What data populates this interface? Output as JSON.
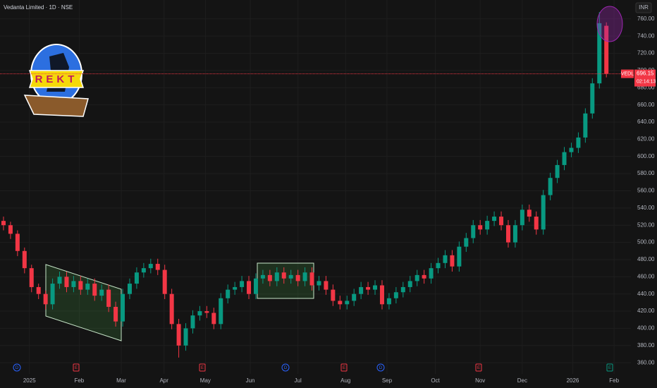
{
  "chart_data": {
    "type": "candlestick",
    "title": "Vedanta Limited · 1D · NSE",
    "currency": "INR",
    "up_color": "#089981",
    "down_color": "#f23645",
    "grid": true,
    "ylim": [
      347,
      782
    ],
    "yticks": [
      360,
      380,
      400,
      420,
      440,
      460,
      480,
      500,
      520,
      540,
      560,
      580,
      600,
      620,
      640,
      660,
      680,
      700,
      720,
      740,
      760
    ],
    "ytick_labels": [
      "360.00",
      "380.00",
      "400.00",
      "420.00",
      "440.00",
      "460.00",
      "480.00",
      "500.00",
      "520.00",
      "540.00",
      "560.00",
      "580.00",
      "600.00",
      "620.00",
      "640.00",
      "660.00",
      "680.00",
      "700.00",
      "720.00",
      "740.00",
      "760.00"
    ],
    "xlim": [
      -0.5,
      89.5
    ],
    "xticks": [
      {
        "value": 3.7,
        "label": "2025"
      },
      {
        "value": 10.8,
        "label": "Feb"
      },
      {
        "value": 16.8,
        "label": "Mar"
      },
      {
        "value": 22.9,
        "label": "Apr"
      },
      {
        "value": 28.8,
        "label": "May"
      },
      {
        "value": 35.2,
        "label": "Jun"
      },
      {
        "value": 42,
        "label": "Jul"
      },
      {
        "value": 48.8,
        "label": "Aug"
      },
      {
        "value": 54.7,
        "label": "Sep"
      },
      {
        "value": 61.6,
        "label": "Oct"
      },
      {
        "value": 68,
        "label": "Nov"
      },
      {
        "value": 74,
        "label": "Dec"
      },
      {
        "value": 81.2,
        "label": "2026"
      },
      {
        "value": 87.1,
        "label": "Feb"
      }
    ],
    "candles": [
      [
        525,
        530,
        514,
        520
      ],
      [
        520,
        524,
        504,
        510
      ],
      [
        510,
        514,
        484,
        490
      ],
      [
        490,
        494,
        464,
        470
      ],
      [
        470,
        474,
        442,
        448
      ],
      [
        448,
        452,
        434,
        440
      ],
      [
        440,
        444,
        422,
        428
      ],
      [
        428,
        458,
        422,
        452
      ],
      [
        452,
        466,
        446,
        460
      ],
      [
        460,
        466,
        442,
        448
      ],
      [
        448,
        461,
        442,
        455
      ],
      [
        455,
        461,
        439,
        445
      ],
      [
        445,
        458,
        439,
        452
      ],
      [
        452,
        458,
        432,
        438
      ],
      [
        438,
        451,
        432,
        445
      ],
      [
        445,
        451,
        419,
        425
      ],
      [
        425,
        431,
        402,
        408
      ],
      [
        408,
        446,
        402,
        440
      ],
      [
        440,
        458,
        434,
        452
      ],
      [
        452,
        471,
        446,
        465
      ],
      [
        465,
        476,
        459,
        470
      ],
      [
        470,
        481,
        464,
        475
      ],
      [
        475,
        481,
        462,
        468
      ],
      [
        468,
        474,
        434,
        440
      ],
      [
        440,
        446,
        399,
        405
      ],
      [
        405,
        411,
        366,
        380
      ],
      [
        380,
        406,
        374,
        400
      ],
      [
        400,
        421,
        394,
        415
      ],
      [
        415,
        426,
        409,
        420
      ],
      [
        420,
        426,
        412,
        418
      ],
      [
        418,
        424,
        399,
        405
      ],
      [
        405,
        441,
        399,
        435
      ],
      [
        435,
        451,
        429,
        445
      ],
      [
        445,
        454,
        439,
        448
      ],
      [
        448,
        461,
        442,
        455
      ],
      [
        455,
        461,
        434,
        440
      ],
      [
        440,
        464,
        434,
        458
      ],
      [
        458,
        468,
        452,
        462
      ],
      [
        462,
        468,
        449,
        455
      ],
      [
        455,
        471,
        449,
        465
      ],
      [
        465,
        471,
        452,
        458
      ],
      [
        458,
        468,
        452,
        462
      ],
      [
        462,
        468,
        449,
        455
      ],
      [
        455,
        471,
        449,
        465
      ],
      [
        465,
        471,
        444,
        450
      ],
      [
        450,
        461,
        444,
        455
      ],
      [
        455,
        461,
        439,
        445
      ],
      [
        445,
        451,
        426,
        432
      ],
      [
        432,
        438,
        422,
        428
      ],
      [
        428,
        438,
        422,
        432
      ],
      [
        432,
        446,
        426,
        440
      ],
      [
        440,
        454,
        434,
        448
      ],
      [
        448,
        454,
        439,
        445
      ],
      [
        445,
        456,
        439,
        450
      ],
      [
        450,
        456,
        422,
        428
      ],
      [
        428,
        441,
        422,
        435
      ],
      [
        435,
        448,
        429,
        442
      ],
      [
        442,
        454,
        436,
        448
      ],
      [
        448,
        461,
        442,
        455
      ],
      [
        455,
        468,
        449,
        462
      ],
      [
        462,
        468,
        452,
        458
      ],
      [
        458,
        476,
        452,
        470
      ],
      [
        470,
        482,
        464,
        476
      ],
      [
        476,
        491,
        470,
        485
      ],
      [
        485,
        491,
        466,
        472
      ],
      [
        472,
        501,
        466,
        495
      ],
      [
        495,
        511,
        489,
        505
      ],
      [
        505,
        526,
        499,
        520
      ],
      [
        520,
        526,
        509,
        515
      ],
      [
        515,
        531,
        509,
        525
      ],
      [
        525,
        536,
        519,
        530
      ],
      [
        530,
        536,
        514,
        520
      ],
      [
        520,
        526,
        494,
        500
      ],
      [
        500,
        526,
        494,
        520
      ],
      [
        520,
        544,
        514,
        538
      ],
      [
        538,
        544,
        524,
        530
      ],
      [
        530,
        536,
        509,
        515
      ],
      [
        515,
        561,
        509,
        555
      ],
      [
        555,
        581,
        549,
        575
      ],
      [
        575,
        596,
        569,
        590
      ],
      [
        590,
        611,
        584,
        605
      ],
      [
        605,
        616,
        599,
        610
      ],
      [
        610,
        628,
        604,
        622
      ],
      [
        622,
        656,
        616,
        650
      ],
      [
        650,
        691,
        644,
        685
      ],
      [
        685,
        768,
        679,
        755
      ],
      [
        752,
        756,
        692,
        696.15
      ]
    ],
    "last_price": {
      "symbol": "VEDL",
      "value": 696.15,
      "countdown": "02:14:13"
    },
    "events": [
      "D",
      "E",
      "E",
      "D",
      "E",
      "D",
      "E",
      "E"
    ],
    "logo_text": "REKT"
  }
}
